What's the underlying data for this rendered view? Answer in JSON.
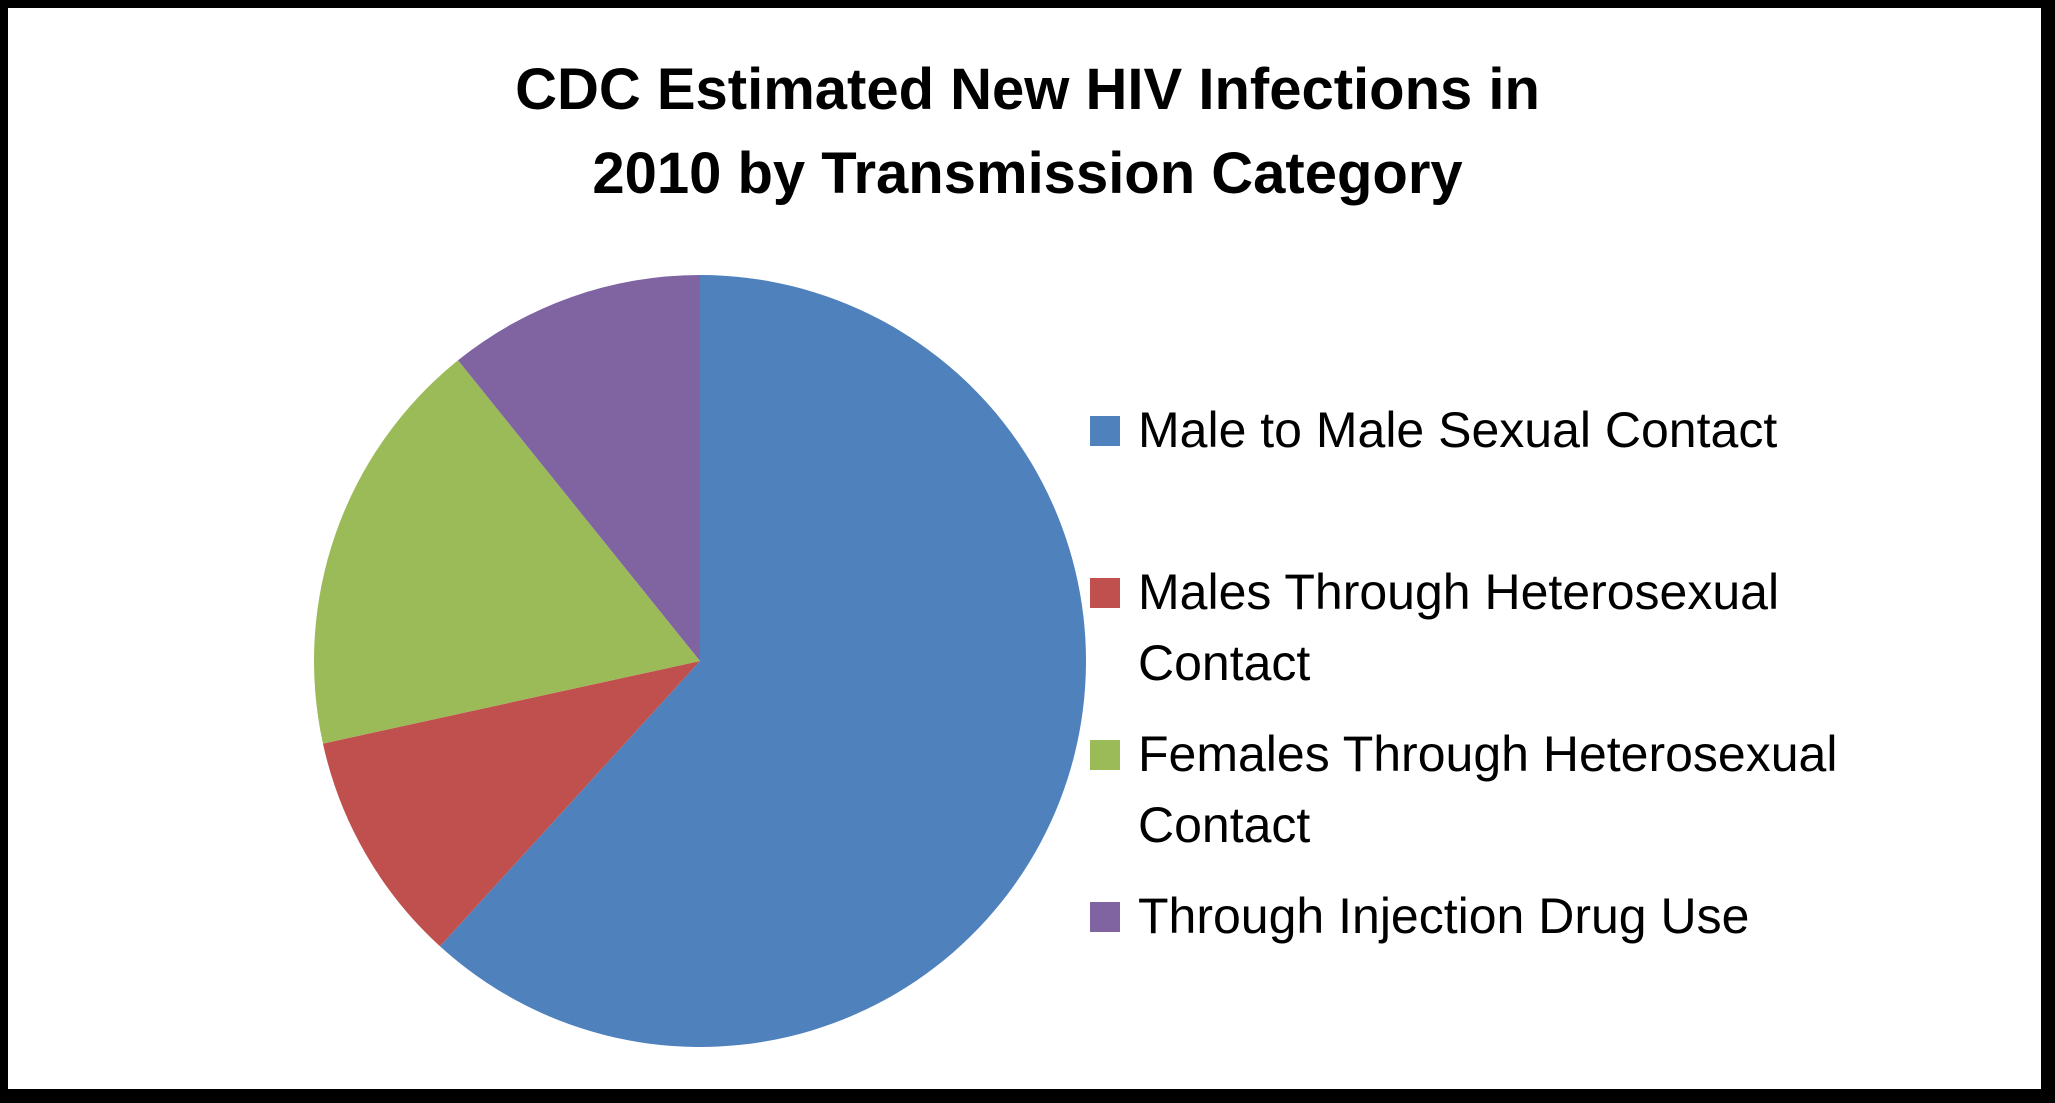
{
  "chart_data": {
    "type": "pie",
    "title_lines": [
      "CDC Estimated New HIV Infections in",
      "2010 by Transmission Category"
    ],
    "slices": [
      {
        "label": "Male to Male Sexual Contact",
        "value": 63,
        "color": "#4F81BD"
      },
      {
        "label": "Males Through Heterosexual Contact",
        "value": 10,
        "color": "#C0504D"
      },
      {
        "label": "Females Through Heterosexual Contact",
        "value": 18,
        "color": "#9BBB59"
      },
      {
        "label": "Through Injection Drug Use",
        "value": 11,
        "color": "#8064A2"
      }
    ],
    "start_angle": "12 o'clock",
    "direction": "clockwise",
    "legend_position": "right"
  }
}
